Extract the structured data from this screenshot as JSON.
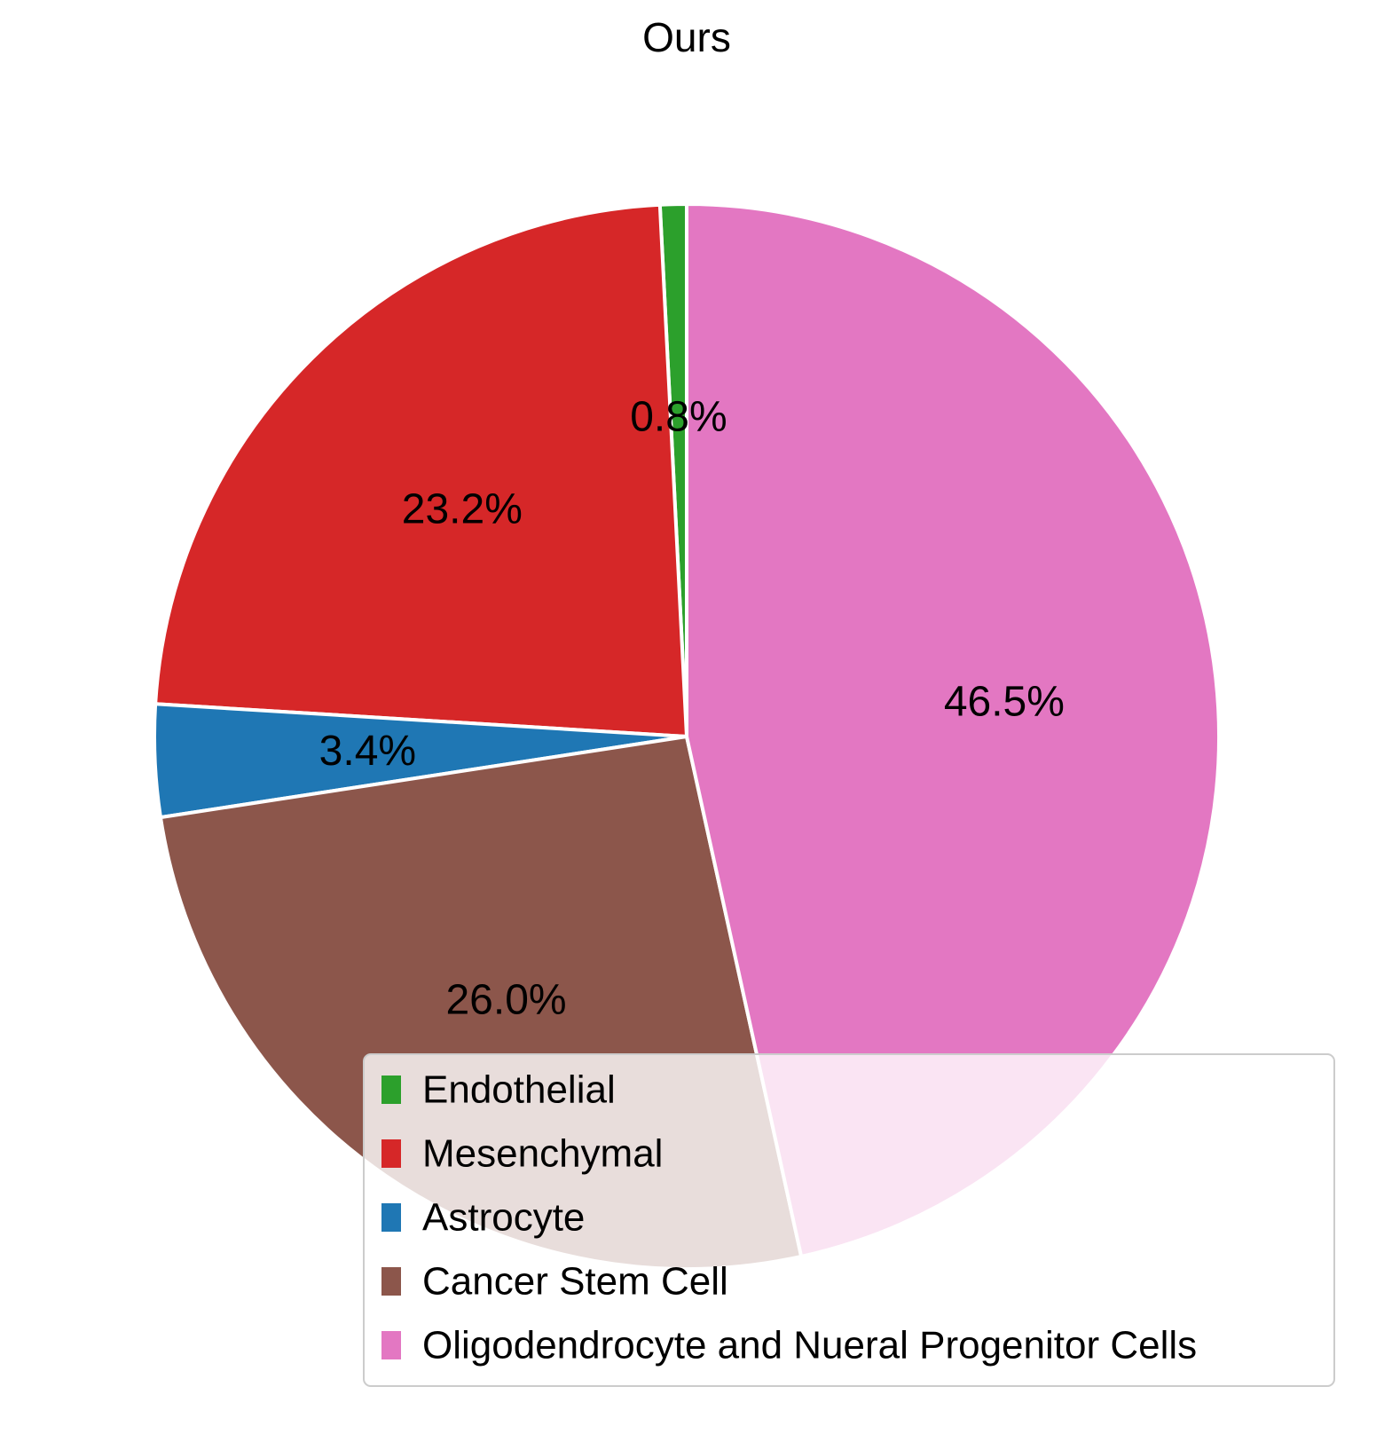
{
  "chart_data": {
    "type": "pie",
    "title": "Ours",
    "slices": [
      {
        "label": "Endothelial",
        "value": 0.8,
        "pct_label": "0.8%",
        "color": "#2ca02c"
      },
      {
        "label": "Mesenchymal",
        "value": 23.2,
        "pct_label": "23.2%",
        "color": "#d62728"
      },
      {
        "label": "Astrocyte",
        "value": 3.4,
        "pct_label": "3.4%",
        "color": "#1f77b4"
      },
      {
        "label": "Cancer Stem Cell",
        "value": 26.0,
        "pct_label": "26.0%",
        "color": "#8c564b"
      },
      {
        "label": "Oligodendrocyte and Nueral Progenitor Cells",
        "value": 46.5,
        "pct_label": "46.5%",
        "color": "#e377c2"
      }
    ],
    "start_angle": "top",
    "direction": "counterclockwise",
    "legend_placement": "lower-right",
    "wedge_edge_color": "#ffffff"
  }
}
